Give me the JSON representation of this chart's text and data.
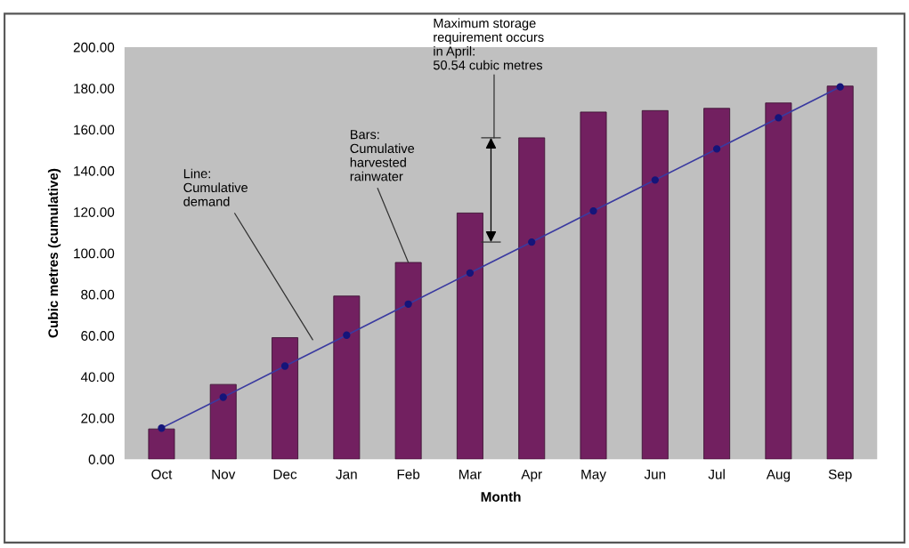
{
  "chart_data": {
    "type": "bar",
    "xlabel": "Month",
    "ylabel": "Cubic metres (cumulative)",
    "categories": [
      "Oct",
      "Nov",
      "Dec",
      "Jan",
      "Feb",
      "Mar",
      "Apr",
      "May",
      "Jun",
      "Jul",
      "Aug",
      "Sep"
    ],
    "series": [
      {
        "color": "#722060",
        "values": [
          14.7,
          36.3,
          59.0,
          79.2,
          95.5,
          119.5,
          156.0,
          168.5,
          169.2,
          170.3,
          172.9,
          181.1
        ]
      },
      {
        "type": "line",
        "color": "#3a3aa0",
        "marker": "circle",
        "line_style": "solid",
        "values": [
          15.1,
          30.1,
          45.2,
          60.2,
          75.3,
          90.4,
          105.4,
          120.5,
          135.5,
          150.6,
          165.7,
          180.7
        ]
      }
    ],
    "ylim": [
      0,
      200
    ],
    "yticks": [
      {
        "value": 0,
        "label": "0.00"
      },
      {
        "value": 20,
        "label": "20.00"
      },
      {
        "value": 40,
        "label": "40.00"
      },
      {
        "value": 60,
        "label": "60.00"
      },
      {
        "value": 80,
        "label": "80.00"
      },
      {
        "value": 100,
        "label": "100.00"
      },
      {
        "value": 120,
        "label": "120.00"
      },
      {
        "value": 140,
        "label": "140.00"
      },
      {
        "value": 160,
        "label": "160.00"
      },
      {
        "value": 180,
        "label": "180.00"
      },
      {
        "value": 200,
        "label": "200.00"
      }
    ],
    "grid": false,
    "legend": false,
    "annotations": [
      "Line:\nCumulative\ndemand",
      {
        "text": "Bars:\nCumulative\nharvested\nrainwater",
        "x": "Feb",
        "y": 95.5
      },
      "Maximum storage\nrequirement occurs\nin April:\n50.54 cubic metres"
    ]
  }
}
